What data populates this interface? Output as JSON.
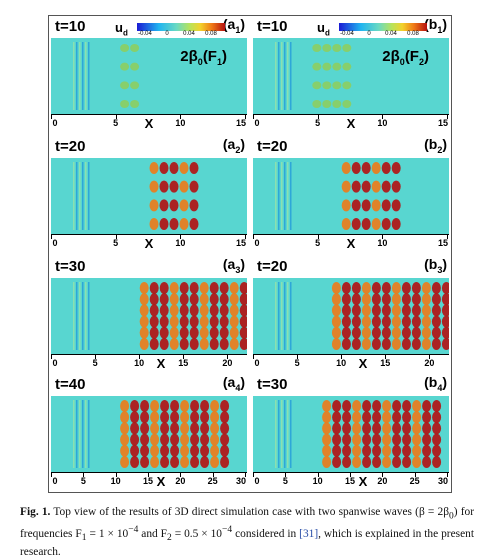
{
  "legend": {
    "variable": "u",
    "variable_sub": "d",
    "ticks": [
      "-0.04",
      "0",
      "0.04",
      "0.08"
    ],
    "colors": [
      "#1b1bd4",
      "#21b5f0",
      "#6ad9c2",
      "#b8e35a",
      "#f2d22c",
      "#f07a17",
      "#b51010"
    ]
  },
  "axis_label": "X",
  "panels": [
    {
      "id": "a1",
      "t": "t=10",
      "label": "(a",
      "label_sub": "1",
      "label_end": ")",
      "annotation": "2β",
      "annotation_sub": "0",
      "annotation_end": "(F",
      "annotation_sub2": "1",
      "annotation_end2": ")",
      "ticks": [
        "0",
        "5",
        "10",
        "15"
      ],
      "xmax": 15,
      "legend": true
    },
    {
      "id": "b1",
      "t": "t=10",
      "label": "(b",
      "label_sub": "1",
      "label_end": ")",
      "annotation": "2β",
      "annotation_sub": "0",
      "annotation_end": "(F",
      "annotation_sub2": "2",
      "annotation_end2": ")",
      "ticks": [
        "0",
        "5",
        "10",
        "15"
      ],
      "xmax": 15,
      "legend": true
    },
    {
      "id": "a2",
      "t": "t=20",
      "label": "(a",
      "label_sub": "2",
      "label_end": ")",
      "ticks": [
        "0",
        "5",
        "10",
        "15"
      ],
      "xmax": 15
    },
    {
      "id": "b2",
      "t": "t=20",
      "label": "(b",
      "label_sub": "2",
      "label_end": ")",
      "ticks": [
        "0",
        "5",
        "10",
        "15"
      ],
      "xmax": 15
    },
    {
      "id": "a3",
      "t": "t=30",
      "label": "(a",
      "label_sub": "3",
      "label_end": ")",
      "ticks": [
        "0",
        "5",
        "10",
        "15",
        "20"
      ],
      "xmax": 22
    },
    {
      "id": "b3",
      "t": "t=20",
      "label": "(b",
      "label_sub": "3",
      "label_end": ")",
      "ticks": [
        "0",
        "5",
        "10",
        "15",
        "20"
      ],
      "xmax": 22
    },
    {
      "id": "a4",
      "t": "t=40",
      "label": "(a",
      "label_sub": "4",
      "label_end": ")",
      "ticks": [
        "0",
        "5",
        "10",
        "15",
        "20",
        "25",
        "30"
      ],
      "xmax": 30
    },
    {
      "id": "b4",
      "t": "t=30",
      "label": "(b",
      "label_sub": "4",
      "label_end": ")",
      "ticks": [
        "0",
        "5",
        "10",
        "15",
        "20",
        "25",
        "30"
      ],
      "xmax": 30
    }
  ],
  "caption": {
    "fig": "Fig. 1.",
    "text1": " Top view of the results of 3D direct simulation case with two spanwise waves (β = 2β",
    "text1_sub": "0",
    "text2": ") for frequencies F",
    "text2_sub": "1",
    "text3": " = 1 × 10",
    "text3_sup": "−4",
    "text4": " and F",
    "text4_sub": "2",
    "text5": " = 0.5 × 10",
    "text5_sup": "−4",
    "text6": " considered in ",
    "ref": "[31]",
    "text7": ", which is explained in the present research."
  }
}
